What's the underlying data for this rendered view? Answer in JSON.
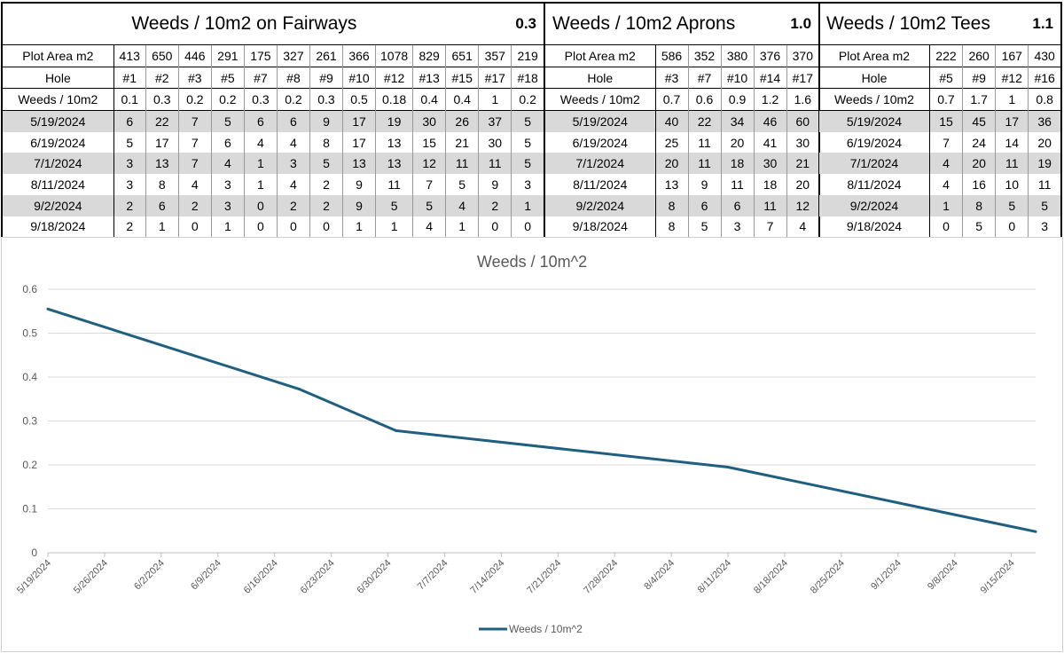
{
  "tables": [
    {
      "id": "fairways",
      "title": "Weeds / 10m2 on Fairways",
      "title_value": "0.3",
      "label_width": 126,
      "col_widths": [
        36,
        37,
        37,
        37,
        37,
        37,
        37,
        37,
        42,
        37,
        37,
        37,
        37
      ],
      "rows": [
        {
          "label": "Plot Area m2",
          "values": [
            "413",
            "650",
            "446",
            "291",
            "175",
            "327",
            "261",
            "366",
            "1078",
            "829",
            "651",
            "357",
            "219"
          ],
          "shade": false
        },
        {
          "label": "Hole",
          "values": [
            "#1",
            "#2",
            "#3",
            "#5",
            "#7",
            "#8",
            "#9",
            "#10",
            "#12",
            "#13",
            "#15",
            "#17",
            "#18"
          ],
          "shade": false
        },
        {
          "label": "Weeds / 10m2",
          "values": [
            "0.1",
            "0.3",
            "0.2",
            "0.2",
            "0.3",
            "0.2",
            "0.3",
            "0.5",
            "0.18",
            "0.4",
            "0.4",
            "1",
            "0.2"
          ],
          "shade": false
        },
        {
          "label": "5/19/2024",
          "values": [
            "6",
            "22",
            "7",
            "5",
            "6",
            "6",
            "9",
            "17",
            "19",
            "30",
            "26",
            "37",
            "5"
          ],
          "shade": true
        },
        {
          "label": "6/19/2024",
          "values": [
            "5",
            "17",
            "7",
            "6",
            "4",
            "4",
            "8",
            "17",
            "13",
            "15",
            "21",
            "30",
            "5"
          ],
          "shade": false
        },
        {
          "label": "7/1/2024",
          "values": [
            "3",
            "13",
            "7",
            "4",
            "1",
            "3",
            "5",
            "13",
            "13",
            "12",
            "11",
            "11",
            "5"
          ],
          "shade": true
        },
        {
          "label": "8/11/2024",
          "values": [
            "3",
            "8",
            "4",
            "3",
            "1",
            "4",
            "2",
            "9",
            "11",
            "7",
            "5",
            "9",
            "3"
          ],
          "shade": false
        },
        {
          "label": "9/2/2024",
          "values": [
            "2",
            "6",
            "2",
            "3",
            "0",
            "2",
            "2",
            "9",
            "5",
            "5",
            "4",
            "2",
            "1"
          ],
          "shade": true
        },
        {
          "label": "9/18/2024",
          "values": [
            "2",
            "1",
            "0",
            "1",
            "0",
            "0",
            "0",
            "1",
            "1",
            "4",
            "1",
            "0",
            "0"
          ],
          "shade": false
        }
      ]
    },
    {
      "id": "aprons",
      "title": "Weeds / 10m2 Aprons",
      "title_value": "1.0",
      "label_width": 124,
      "col_widths": [
        37,
        37,
        37,
        37,
        37
      ],
      "rows": [
        {
          "label": "Plot Area m2",
          "values": [
            "586",
            "352",
            "380",
            "376",
            "370"
          ],
          "shade": false
        },
        {
          "label": "Hole",
          "values": [
            "#3",
            "#7",
            "#10",
            "#14",
            "#17"
          ],
          "shade": false
        },
        {
          "label": "Weeds / 10m2",
          "values": [
            "0.7",
            "0.6",
            "0.9",
            "1.2",
            "1.6"
          ],
          "shade": false
        },
        {
          "label": "5/19/2024",
          "values": [
            "40",
            "22",
            "34",
            "46",
            "60"
          ],
          "shade": true
        },
        {
          "label": "6/19/2024",
          "values": [
            "25",
            "11",
            "20",
            "41",
            "30"
          ],
          "shade": false
        },
        {
          "label": "7/1/2024",
          "values": [
            "20",
            "11",
            "18",
            "30",
            "21"
          ],
          "shade": true
        },
        {
          "label": "8/11/2024",
          "values": [
            "13",
            "9",
            "11",
            "18",
            "20"
          ],
          "shade": false
        },
        {
          "label": "9/2/2024",
          "values": [
            "8",
            "6",
            "6",
            "11",
            "12"
          ],
          "shade": true
        },
        {
          "label": "9/18/2024",
          "values": [
            "8",
            "5",
            "3",
            "7",
            "4"
          ],
          "shade": false
        }
      ]
    },
    {
      "id": "tees",
      "title": "Weeds / 10m2 Tees",
      "title_value": "1.1",
      "label_width": 124,
      "col_widths": [
        37,
        37,
        37,
        37
      ],
      "rows": [
        {
          "label": "Plot Area m2",
          "values": [
            "222",
            "260",
            "167",
            "430"
          ],
          "shade": false
        },
        {
          "label": "Hole",
          "values": [
            "#5",
            "#9",
            "#12",
            "#16"
          ],
          "shade": false
        },
        {
          "label": "Weeds / 10m2",
          "values": [
            "0.7",
            "1.7",
            "1",
            "0.8"
          ],
          "shade": false
        },
        {
          "label": "5/19/2024",
          "values": [
            "15",
            "45",
            "17",
            "36"
          ],
          "shade": true
        },
        {
          "label": "6/19/2024",
          "values": [
            "7",
            "24",
            "14",
            "20"
          ],
          "shade": false
        },
        {
          "label": "7/1/2024",
          "values": [
            "4",
            "20",
            "11",
            "19"
          ],
          "shade": true
        },
        {
          "label": "8/11/2024",
          "values": [
            "4",
            "16",
            "10",
            "11"
          ],
          "shade": false
        },
        {
          "label": "9/2/2024",
          "values": [
            "1",
            "8",
            "5",
            "5"
          ],
          "shade": true
        },
        {
          "label": "9/18/2024",
          "values": [
            "0",
            "5",
            "0",
            "3"
          ],
          "shade": false
        }
      ]
    }
  ],
  "chart_data": {
    "type": "line",
    "title": "Weeds / 10m^2",
    "xlabel": "",
    "ylabel": "",
    "x_tick_labels": [
      "5/19/2024",
      "5/26/2024",
      "6/2/2024",
      "6/9/2024",
      "6/16/2024",
      "6/23/2024",
      "6/30/2024",
      "7/7/2024",
      "7/14/2024",
      "7/21/2024",
      "7/28/2024",
      "8/4/2024",
      "8/11/2024",
      "8/18/2024",
      "8/25/2024",
      "9/1/2024",
      "9/8/2024",
      "9/15/2024"
    ],
    "x_range": [
      "5/19/2024",
      "9/18/2024"
    ],
    "ylim": [
      0,
      0.6
    ],
    "y_ticks": [
      "0",
      "0.1",
      "0.2",
      "0.3",
      "0.4",
      "0.5",
      "0.6"
    ],
    "grid": true,
    "legend_position": "bottom",
    "series": [
      {
        "name": "Weeds / 10m^2",
        "color": "#1f5f7f",
        "x": [
          "5/19/2024",
          "6/19/2024",
          "7/1/2024",
          "8/11/2024",
          "9/2/2024",
          "9/18/2024"
        ],
        "values": [
          0.555,
          0.373,
          0.278,
          0.195,
          0.11,
          0.048
        ]
      }
    ]
  }
}
